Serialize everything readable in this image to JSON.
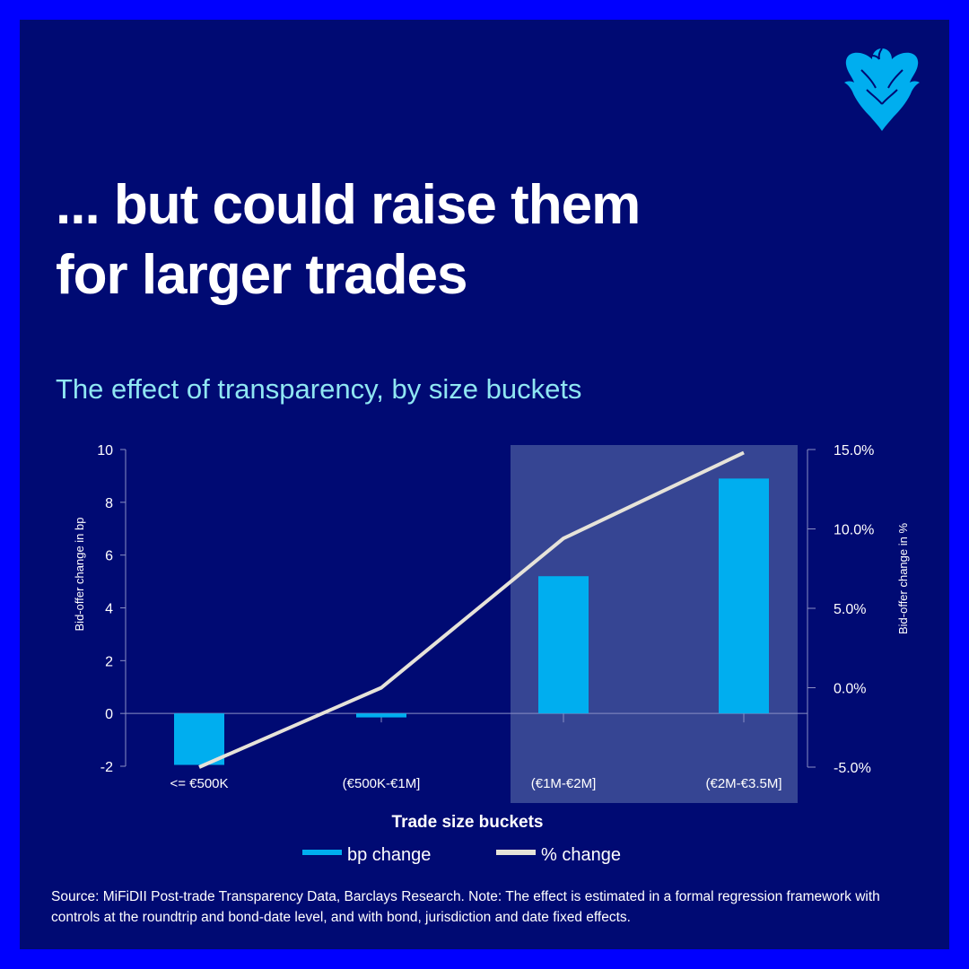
{
  "headline": {
    "line1": "... but could raise them",
    "line2": "for larger trades"
  },
  "logo_icon": "barclays-eagle-icon",
  "colors": {
    "frame": "#0000ff",
    "card": "#000a73",
    "bar": "#00aeef",
    "line": "#e6e3d9",
    "highlight": "#364593",
    "subtitle": "#8fe6f2",
    "logo": "#00aeef"
  },
  "chart_data": {
    "type": "bar",
    "title": "The effect of transparency, by size buckets",
    "categories": [
      "<= €500K",
      "(€500K-€1M]",
      "(€1M-€2M]",
      "(€2M-€3.5M]"
    ],
    "series": [
      {
        "name": "bp change",
        "type": "bar",
        "axis": "left",
        "values": [
          -1.95,
          -0.15,
          5.2,
          8.9
        ]
      },
      {
        "name": "% change",
        "type": "line",
        "axis": "right",
        "values": [
          -5.0,
          0.0,
          9.4,
          14.8
        ]
      }
    ],
    "xlabel": "Trade size buckets",
    "ylabel_left": "Bid-offer change in bp",
    "ylabel_right": "Bid-offer change in %",
    "ylim_left": [
      -2,
      10
    ],
    "ylim_right": [
      -5,
      15
    ],
    "yticks_left": [
      "10",
      "8",
      "6",
      "4",
      "2",
      "0",
      "-2"
    ],
    "yticks_right": [
      "15.0%",
      "10.0%",
      "5.0%",
      "0.0%",
      "-5.0%"
    ],
    "highlighted_categories": [
      "(€1M-€2M]",
      "(€2M-€3.5M]"
    ],
    "legend": [
      "bp change",
      "% change"
    ],
    "legend_position": "bottom",
    "grid": false
  },
  "source_note": "Source: MiFiDII Post-trade Transparency Data, Barclays Research. Note: The effect is estimated in a formal regression framework with controls at the roundtrip and bond-date level, and with bond, jurisdiction and date fixed effects."
}
